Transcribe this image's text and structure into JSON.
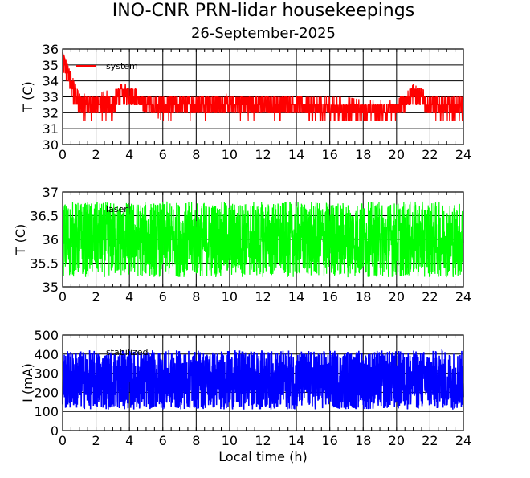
{
  "title": "INO-CNR PRN-lidar housekeepings",
  "subtitle": "26-September-2025",
  "chart_data": [
    {
      "type": "line",
      "ylabel": "T (C)",
      "xlabel": "",
      "xlim": [
        0,
        24
      ],
      "ylim": [
        30,
        36
      ],
      "x_ticks": [
        "0",
        "2",
        "4",
        "6",
        "8",
        "10",
        "12",
        "14",
        "16",
        "18",
        "20",
        "22",
        "24"
      ],
      "y_ticks": [
        "30",
        "31",
        "32",
        "33",
        "34",
        "35",
        "36"
      ],
      "grid": true,
      "legend_position": "top-left",
      "series": [
        {
          "name": "system",
          "color": "#ff0000",
          "x": [
            0,
            1,
            2,
            3,
            3.5,
            4,
            5,
            6,
            7,
            8,
            9,
            10,
            11,
            12,
            13,
            14,
            15,
            16,
            17,
            18,
            19,
            20,
            20.8,
            21,
            22,
            23,
            24
          ],
          "y": [
            35.5,
            32.5,
            32.5,
            32.5,
            33.2,
            33.2,
            32.5,
            32.3,
            32.5,
            32.5,
            32.5,
            32.5,
            32.5,
            32.5,
            32.5,
            32.5,
            32.3,
            32.3,
            32.2,
            32.2,
            32.2,
            32.2,
            33,
            33.3,
            32.5,
            32.3,
            32.3
          ],
          "band_low": [
            33.5,
            31.5,
            31.5,
            31.5,
            32.5,
            32.5,
            32,
            31.5,
            31.5,
            31.5,
            31.5,
            31.5,
            31.5,
            31.5,
            31.5,
            31.5,
            31.5,
            31.5,
            31.5,
            31.5,
            31.5,
            31.5,
            32,
            32.5,
            31.5,
            31.5,
            31.5
          ],
          "band_high": [
            35.8,
            33.2,
            33.2,
            33.5,
            33.8,
            33.8,
            33.2,
            33.2,
            33.2,
            33.2,
            33.2,
            33.2,
            33.2,
            33.2,
            33.2,
            33.2,
            33,
            33,
            33,
            32.8,
            32.8,
            32.8,
            33.5,
            33.8,
            33.2,
            33,
            33
          ]
        }
      ]
    },
    {
      "type": "line",
      "ylabel": "T (C)",
      "xlabel": "",
      "xlim": [
        0,
        24
      ],
      "ylim": [
        35,
        37
      ],
      "x_ticks": [
        "0",
        "2",
        "4",
        "6",
        "8",
        "10",
        "12",
        "14",
        "16",
        "18",
        "20",
        "22",
        "24"
      ],
      "y_ticks": [
        "35",
        "35.5",
        "36",
        "36.5",
        "37"
      ],
      "grid": true,
      "legend_position": "top-left",
      "series": [
        {
          "name": "laser",
          "color": "#00ff00",
          "x": [
            0,
            24
          ],
          "y": [
            36,
            36
          ],
          "band_low": [
            35.2,
            35.2
          ],
          "band_high": [
            36.8,
            36.8
          ]
        }
      ]
    },
    {
      "type": "line",
      "ylabel": "I (mA)",
      "xlabel": "Local time (h)",
      "xlim": [
        0,
        24
      ],
      "ylim": [
        0,
        500
      ],
      "x_ticks": [
        "0",
        "2",
        "4",
        "6",
        "8",
        "10",
        "12",
        "14",
        "16",
        "18",
        "20",
        "22",
        "24"
      ],
      "y_ticks": [
        "0",
        "100",
        "200",
        "300",
        "400",
        "500"
      ],
      "grid": true,
      "legend_position": "top-left",
      "series": [
        {
          "name": "stabilized",
          "color": "#0000ff",
          "x": [
            0,
            24
          ],
          "y": [
            270,
            270
          ],
          "band_low": [
            110,
            110
          ],
          "band_high": [
            420,
            420
          ]
        }
      ]
    }
  ]
}
